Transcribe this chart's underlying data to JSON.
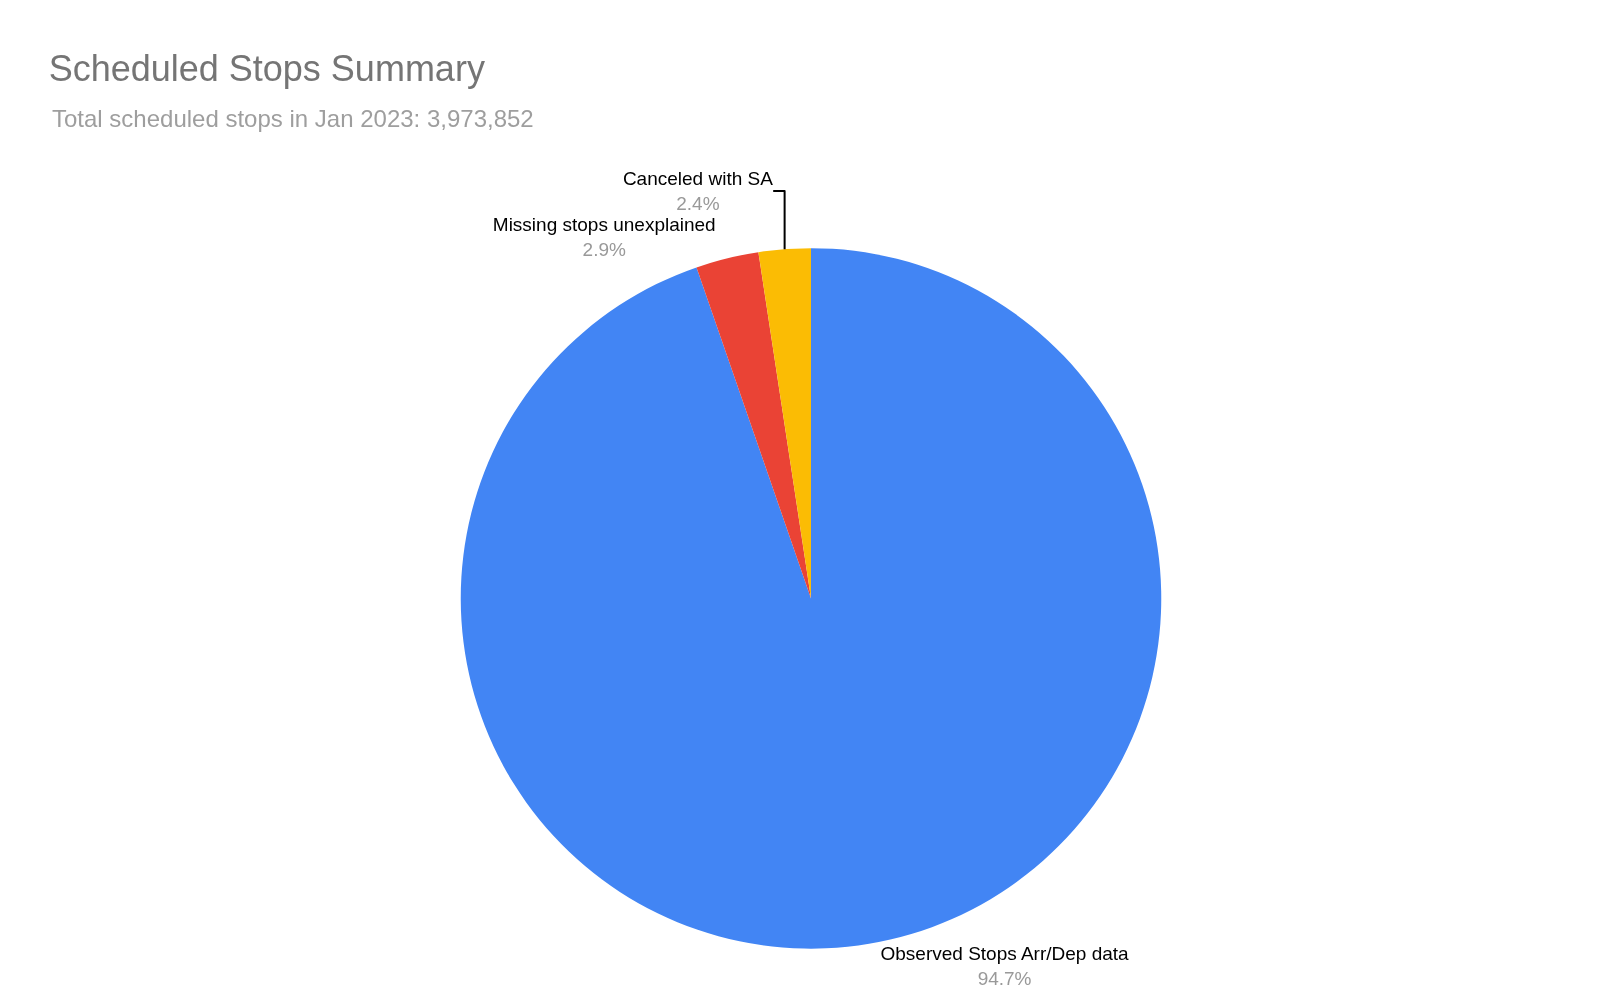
{
  "chart_data": {
    "type": "pie",
    "title": "Scheduled Stops Summary",
    "subtitle": "Total scheduled stops in Jan 2023: 3,973,852",
    "categories": [
      "Observed Stops Arr/Dep data",
      "Missing stops unexplained",
      "Canceled with SA"
    ],
    "values": [
      94.7,
      2.9,
      2.4
    ],
    "colors": [
      "#4285f4",
      "#ea4335",
      "#fbbc04"
    ],
    "value_labels": [
      "94.7%",
      "2.9%",
      "2.4%"
    ],
    "legend": false
  }
}
